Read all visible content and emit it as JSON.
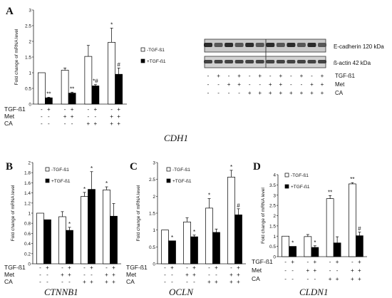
{
  "panel_letters": [
    "A",
    "B",
    "C",
    "D"
  ],
  "row_labels": {
    "tgf": "TGF-ß1",
    "met": "Met",
    "ca": "CA"
  },
  "blot": {
    "labels": [
      "E-cadherin 120 kDa",
      "ß-actin 42 kDa"
    ],
    "lanes": {
      "tgf": [
        "-",
        "+",
        "-",
        "+",
        "-",
        "+",
        "-",
        "+",
        "-",
        "+",
        "-",
        "+"
      ],
      "met": [
        "-",
        "-",
        "+",
        "+",
        "-",
        "-",
        "+",
        "+",
        "-",
        "-",
        "+",
        "+"
      ],
      "ca": [
        "-",
        "-",
        "-",
        "-",
        "+",
        "+",
        "+",
        "+",
        "+",
        "+",
        "+",
        "+"
      ]
    }
  },
  "chart_data": [
    {
      "type": "bar",
      "panel": "A",
      "gene": "CDH1",
      "ylabel": "Fold change of mRNA level",
      "ylim": [
        0,
        3
      ],
      "yticks": [
        "0",
        "0.5",
        "1",
        "1.5",
        "2",
        "2.5",
        "3"
      ],
      "legend": [
        "-TGF-ß1",
        "+TGF-ß1"
      ],
      "groups": [
        {
          "tgf": [
            "-",
            "+"
          ],
          "met": [
            "-",
            "-"
          ],
          "ca": [
            "-",
            "-"
          ]
        },
        {
          "tgf": [
            "-",
            "+"
          ],
          "met": [
            "+",
            "+"
          ],
          "ca": [
            "-",
            "-"
          ]
        },
        {
          "tgf": [
            "-",
            "+"
          ],
          "met": [
            "-",
            "-"
          ],
          "ca": [
            "+",
            "+"
          ]
        },
        {
          "tgf": [
            "-",
            "+"
          ],
          "met": [
            "+",
            "+"
          ],
          "ca": [
            "+",
            "+"
          ]
        }
      ],
      "series": [
        {
          "name": "-TGF-ß1",
          "values": [
            1.0,
            1.08,
            1.52,
            1.97
          ],
          "errors": [
            0,
            0.07,
            0.35,
            0.45
          ],
          "marks": [
            "",
            "",
            "",
            "*"
          ]
        },
        {
          "name": "+TGF-ß1",
          "values": [
            0.2,
            0.35,
            0.58,
            0.95
          ],
          "errors": [
            0.02,
            0.03,
            0.04,
            0.2
          ],
          "marks": [
            "**",
            "**",
            "*#",
            "#"
          ]
        }
      ]
    },
    {
      "type": "bar",
      "panel": "B",
      "gene": "CTNNB1",
      "ylabel": "Fold change of mRNA level",
      "ylim": [
        0,
        2
      ],
      "yticks": [
        "0",
        "0.2",
        "0.4",
        "0.6",
        "0.8",
        "1",
        "1.2",
        "1.4",
        "1.6",
        "1.8",
        "2"
      ],
      "legend": [
        "-TGF-ß1",
        "+TGF-ß1"
      ],
      "groups": [
        {
          "tgf": [
            "-",
            "+"
          ],
          "met": [
            "-",
            "-"
          ],
          "ca": [
            "-",
            "-"
          ]
        },
        {
          "tgf": [
            "-",
            "+"
          ],
          "met": [
            "+",
            "+"
          ],
          "ca": [
            "-",
            "-"
          ]
        },
        {
          "tgf": [
            "-",
            "+"
          ],
          "met": [
            "-",
            "-"
          ],
          "ca": [
            "+",
            "+"
          ]
        },
        {
          "tgf": [
            "-",
            "+"
          ],
          "met": [
            "+",
            "+"
          ],
          "ca": [
            "+",
            "+"
          ]
        }
      ],
      "series": [
        {
          "name": "-TGF-ß1",
          "values": [
            1.0,
            0.93,
            1.33,
            1.46
          ],
          "errors": [
            0,
            0.1,
            0.08,
            0.06
          ],
          "marks": [
            "",
            "",
            "*",
            "*"
          ]
        },
        {
          "name": "+TGF-ß1",
          "values": [
            0.87,
            0.66,
            1.47,
            0.94
          ],
          "errors": [
            0,
            0.06,
            0.35,
            0.25
          ],
          "marks": [
            "",
            "*",
            "*",
            ""
          ]
        }
      ]
    },
    {
      "type": "bar",
      "panel": "C",
      "gene": "OCLN",
      "ylabel": "Fold change of mRNA level",
      "ylim": [
        0,
        3
      ],
      "yticks": [
        "0",
        "0.5",
        "1",
        "1.5",
        "2",
        "2.5",
        "3"
      ],
      "legend": [
        "-TGF-ß1",
        "+TGF-ß1"
      ],
      "groups": [
        {
          "tgf": [
            "-",
            "+"
          ],
          "met": [
            "-",
            "-"
          ],
          "ca": [
            "-",
            "-"
          ]
        },
        {
          "tgf": [
            "-",
            "+"
          ],
          "met": [
            "+",
            "+"
          ],
          "ca": [
            "-",
            "-"
          ]
        },
        {
          "tgf": [
            "-",
            "+"
          ],
          "met": [
            "-",
            "-"
          ],
          "ca": [
            "+",
            "+"
          ]
        },
        {
          "tgf": [
            "-",
            "+"
          ],
          "met": [
            "+",
            "+"
          ],
          "ca": [
            "+",
            "+"
          ]
        }
      ],
      "series": [
        {
          "name": "-TGF-ß1",
          "values": [
            1.0,
            1.24,
            1.65,
            2.57
          ],
          "errors": [
            0,
            0.12,
            0.28,
            0.2
          ],
          "marks": [
            "",
            "",
            "*",
            "*"
          ]
        },
        {
          "name": "+TGF-ß1",
          "values": [
            0.68,
            0.8,
            0.93,
            1.45
          ],
          "errors": [
            0,
            0.05,
            0.1,
            0.18
          ],
          "marks": [
            "*",
            "*",
            "",
            "#"
          ]
        }
      ]
    },
    {
      "type": "bar",
      "panel": "D",
      "gene": "CLDN1",
      "ylabel": "Fold change of mRNA level",
      "ylim": [
        0,
        4
      ],
      "yticks": [
        "0",
        "0.5",
        "1",
        "1.5",
        "2",
        "2.5",
        "3",
        "3.5",
        "4"
      ],
      "legend": [
        "-TGF-ß1",
        "+TGF-ß1"
      ],
      "groups": [
        {
          "tgf": [
            "-",
            "+"
          ],
          "met": [
            "-",
            "-"
          ],
          "ca": [
            "-",
            "-"
          ]
        },
        {
          "tgf": [
            "-",
            "+"
          ],
          "met": [
            "+",
            "+"
          ],
          "ca": [
            "-",
            "-"
          ]
        },
        {
          "tgf": [
            "-",
            "+"
          ],
          "met": [
            "-",
            "-"
          ],
          "ca": [
            "+",
            "+"
          ]
        },
        {
          "tgf": [
            "-",
            "+"
          ],
          "met": [
            "+",
            "+"
          ],
          "ca": [
            "+",
            "+"
          ]
        }
      ],
      "series": [
        {
          "name": "-TGF-ß1",
          "values": [
            1.0,
            0.98,
            2.83,
            3.55
          ],
          "errors": [
            0,
            0.1,
            0.15,
            0.06
          ],
          "marks": [
            "",
            "",
            "**",
            "**"
          ]
        },
        {
          "name": "+TGF-ß1",
          "values": [
            0.5,
            0.45,
            0.67,
            1.02
          ],
          "errors": [
            0,
            0.08,
            0.3,
            0.18
          ],
          "marks": [
            "*",
            "*",
            "",
            "#"
          ]
        }
      ]
    }
  ]
}
